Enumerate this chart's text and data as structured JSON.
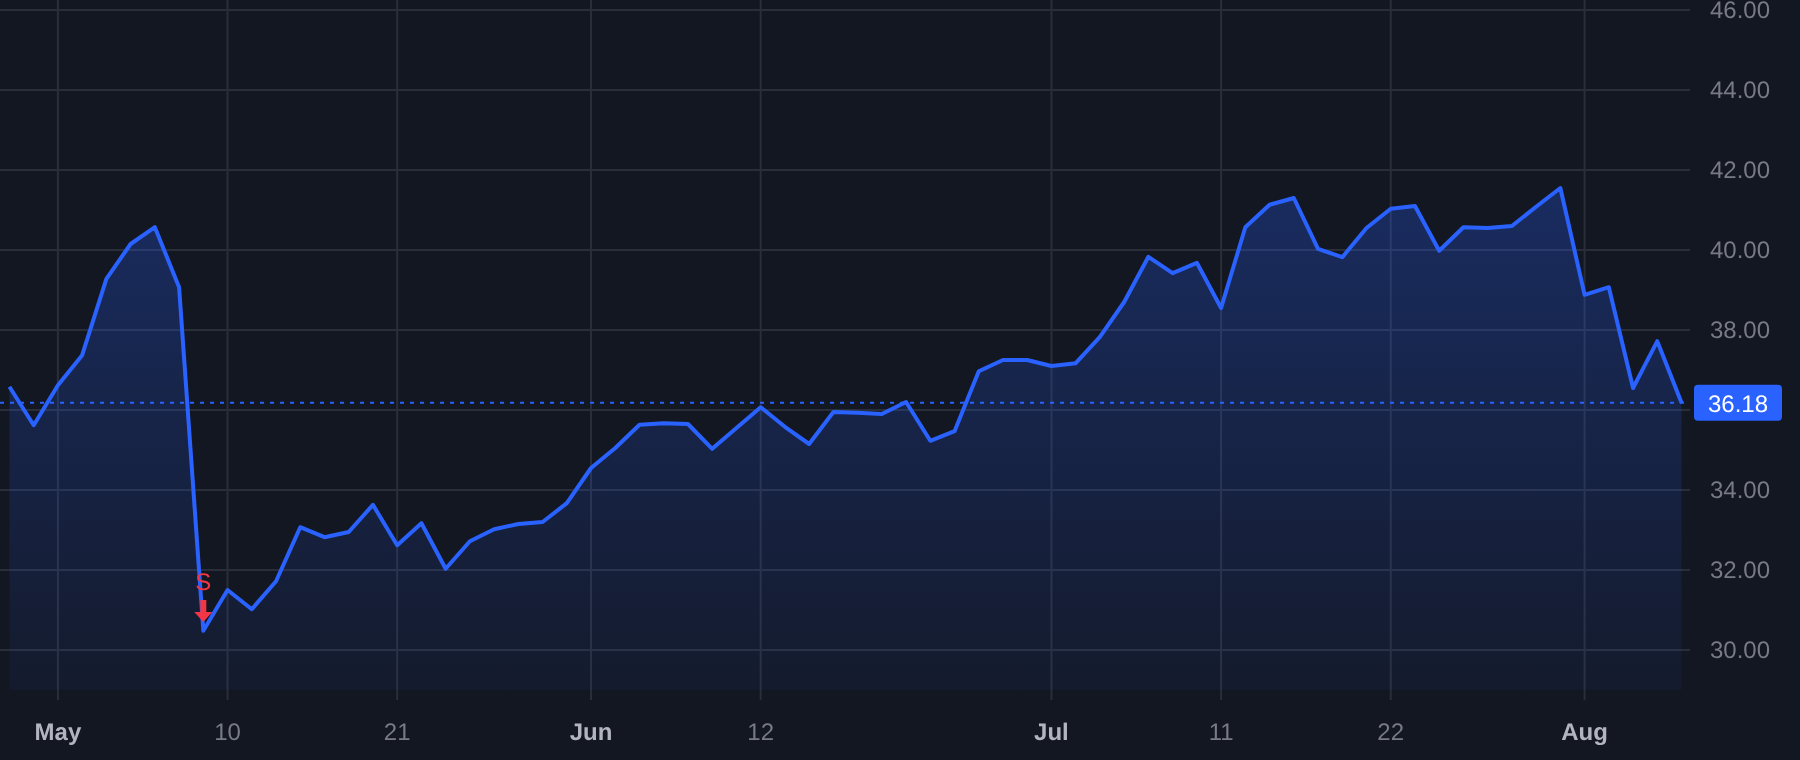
{
  "chart_data": {
    "type": "area",
    "categories": [
      null,
      null,
      "May",
      null,
      null,
      null,
      null,
      null,
      null,
      "10",
      null,
      null,
      null,
      null,
      null,
      null,
      "21",
      null,
      null,
      null,
      null,
      null,
      null,
      null,
      "Jun",
      null,
      null,
      null,
      null,
      null,
      null,
      "12",
      null,
      null,
      null,
      null,
      null,
      null,
      null,
      null,
      null,
      null,
      null,
      "Jul",
      null,
      null,
      null,
      null,
      null,
      null,
      "11",
      null,
      null,
      null,
      null,
      null,
      null,
      "22",
      null,
      null,
      null,
      null,
      null,
      null,
      null,
      "Aug",
      null,
      null,
      null,
      null
    ],
    "series": [
      {
        "color": "#2962ff",
        "values": [
          36.58,
          35.62,
          36.62,
          37.37,
          39.28,
          40.15,
          40.57,
          39.07,
          30.48,
          31.5,
          31.02,
          31.72,
          33.07,
          32.82,
          32.95,
          33.63,
          32.62,
          33.17,
          32.03,
          32.72,
          33.02,
          33.15,
          33.2,
          33.67,
          34.55,
          35.05,
          35.63,
          35.67,
          35.65,
          35.03,
          35.55,
          36.07,
          35.58,
          35.15,
          35.95,
          35.93,
          35.9,
          36.2,
          35.23,
          35.47,
          36.97,
          37.25,
          37.25,
          37.1,
          37.17,
          37.83,
          38.7,
          39.83,
          39.42,
          39.68,
          38.55,
          40.57,
          41.13,
          41.3,
          40.03,
          39.82,
          40.55,
          41.03,
          41.1,
          39.98,
          40.57,
          40.55,
          40.6,
          41.08,
          41.55,
          38.88,
          39.07,
          36.55,
          37.72,
          36.18
        ]
      }
    ],
    "ylim": [
      29,
      46.25
    ],
    "yticks": [
      {
        "value": 30,
        "label": "30.00"
      },
      {
        "value": 32,
        "label": "32.00"
      },
      {
        "value": 34,
        "label": "34.00"
      },
      {
        "value": 36,
        "label": null
      },
      {
        "value": 38,
        "label": "38.00"
      },
      {
        "value": 40,
        "label": "40.00"
      },
      {
        "value": 42,
        "label": "42.00"
      },
      {
        "value": 44,
        "label": "44.00"
      },
      {
        "value": 46,
        "label": "46.00"
      }
    ],
    "ref_lines": [
      {
        "axis": "y",
        "value": 36.18,
        "label": "36.18",
        "color": "#2962ff",
        "line_style": "dotted"
      }
    ],
    "annotations": [
      {
        "text": "S",
        "y": 30.7
      }
    ],
    "grid": true,
    "marker": "none",
    "line_style": "solid"
  }
}
